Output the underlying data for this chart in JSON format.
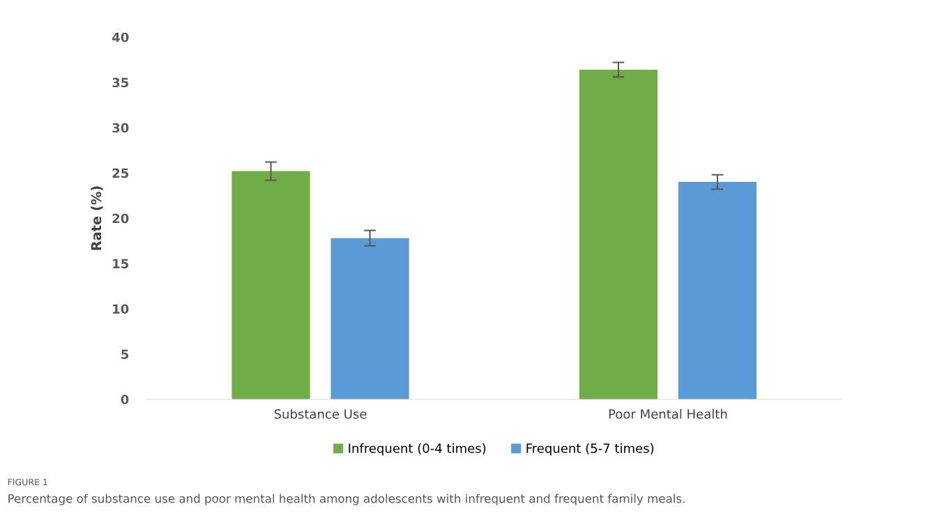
{
  "chart_data": {
    "type": "bar",
    "categories": [
      "Substance Use",
      "Poor Mental Health"
    ],
    "series": [
      {
        "name": "Infrequent (0-4 times)",
        "color": "#70ad47",
        "values": [
          25.2,
          36.4
        ],
        "errors": [
          1.0,
          0.8
        ]
      },
      {
        "name": "Frequent (5-7 times)",
        "color": "#5b9bd5",
        "values": [
          17.8,
          24.0
        ],
        "errors": [
          0.85,
          0.8
        ]
      }
    ],
    "ylabel": "Rate (%)",
    "ylim": [
      0,
      40
    ],
    "yticks": [
      0,
      5,
      10,
      15,
      20,
      25,
      30,
      35,
      40
    ],
    "grid": false,
    "legend": "bottom",
    "annotations": [
      "FIGURE 1",
      "Percentage of substance use and poor mental health among adolescents with infrequent and frequent family meals."
    ]
  }
}
